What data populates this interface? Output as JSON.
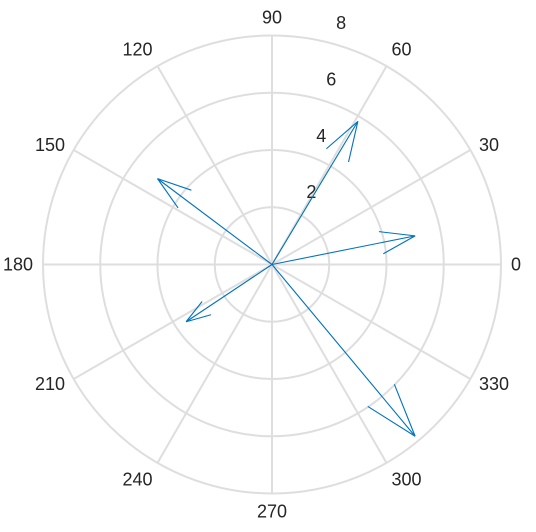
{
  "chart_data": {
    "type": "compass",
    "theta_ticks": [
      0,
      30,
      60,
      90,
      120,
      150,
      180,
      210,
      240,
      270,
      300,
      330
    ],
    "theta_tick_labels": [
      "0",
      "30",
      "60",
      "90",
      "120",
      "150",
      "180",
      "210",
      "240",
      "270",
      "300",
      "330"
    ],
    "r_ticks": [
      2,
      4,
      6,
      8
    ],
    "r_tick_labels": [
      "2",
      "4",
      "6",
      "8"
    ],
    "rlim": [
      0,
      8
    ],
    "grid": true,
    "arrow_color": "#0072bd",
    "grid_color": "#dedede",
    "arrows": [
      {
        "u": 5.0,
        "v": 1.0
      },
      {
        "u": 3.0,
        "v": 5.0
      },
      {
        "u": -4.0,
        "v": 3.0
      },
      {
        "u": -3.0,
        "v": -2.0
      },
      {
        "u": 5.0,
        "v": -6.0
      }
    ]
  }
}
